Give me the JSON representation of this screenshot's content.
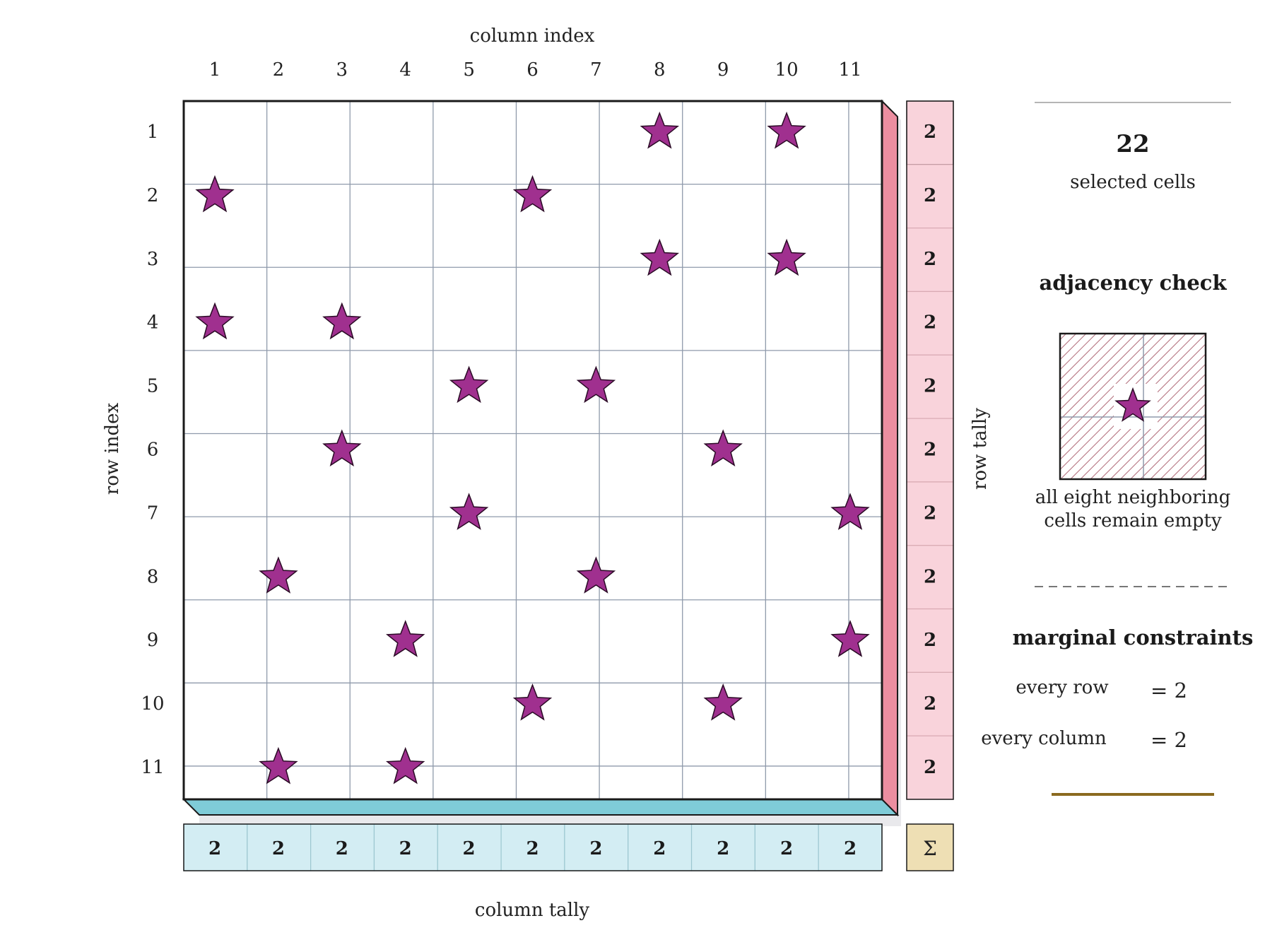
{
  "axes": {
    "column_label": "column index",
    "row_label": "row index",
    "row_tally_label": "row tally",
    "column_tally_label": "column tally"
  },
  "grid": {
    "rows": 11,
    "cols": 11,
    "column_numbers": [
      "1",
      "2",
      "3",
      "4",
      "5",
      "6",
      "7",
      "8",
      "9",
      "10",
      "11"
    ],
    "row_numbers": [
      "1",
      "2",
      "3",
      "4",
      "5",
      "6",
      "7",
      "8",
      "9",
      "10",
      "11"
    ],
    "stars": [
      [
        1,
        8
      ],
      [
        1,
        10
      ],
      [
        2,
        1
      ],
      [
        2,
        6
      ],
      [
        3,
        8
      ],
      [
        3,
        10
      ],
      [
        4,
        1
      ],
      [
        4,
        3
      ],
      [
        5,
        5
      ],
      [
        5,
        7
      ],
      [
        6,
        3
      ],
      [
        6,
        9
      ],
      [
        7,
        5
      ],
      [
        7,
        11
      ],
      [
        8,
        2
      ],
      [
        8,
        7
      ],
      [
        9,
        4
      ],
      [
        9,
        11
      ],
      [
        10,
        6
      ],
      [
        10,
        9
      ],
      [
        11,
        2
      ],
      [
        11,
        4
      ]
    ]
  },
  "row_tally": [
    "2",
    "2",
    "2",
    "2",
    "2",
    "2",
    "2",
    "2",
    "2",
    "2",
    "2"
  ],
  "column_tally": [
    "2",
    "2",
    "2",
    "2",
    "2",
    "2",
    "2",
    "2",
    "2",
    "2",
    "2"
  ],
  "sigma": "Σ",
  "sidebar": {
    "count": "22",
    "count_label": "selected cells",
    "adjacency_title": "adjacency check",
    "adjacency_caption_1": "all eight neighboring",
    "adjacency_caption_2": "cells remain empty",
    "constraints_title": "marginal constraints",
    "row_rule_label": "every row",
    "row_rule_value": "= 2",
    "col_rule_label": "every column",
    "col_rule_value": "= 2"
  },
  "colors": {
    "star_fill": "#a0308f",
    "row_tally_fill": "#f9d3db",
    "row_edge": "#ec8ea0",
    "col_tally_fill": "#d3edf3",
    "col_edge": "#7fccd8",
    "sigma_fill": "#eedfb4",
    "hatch": "#b06a78",
    "gold_rule": "#8b6a1f",
    "grid_line": "#8f9aab"
  }
}
